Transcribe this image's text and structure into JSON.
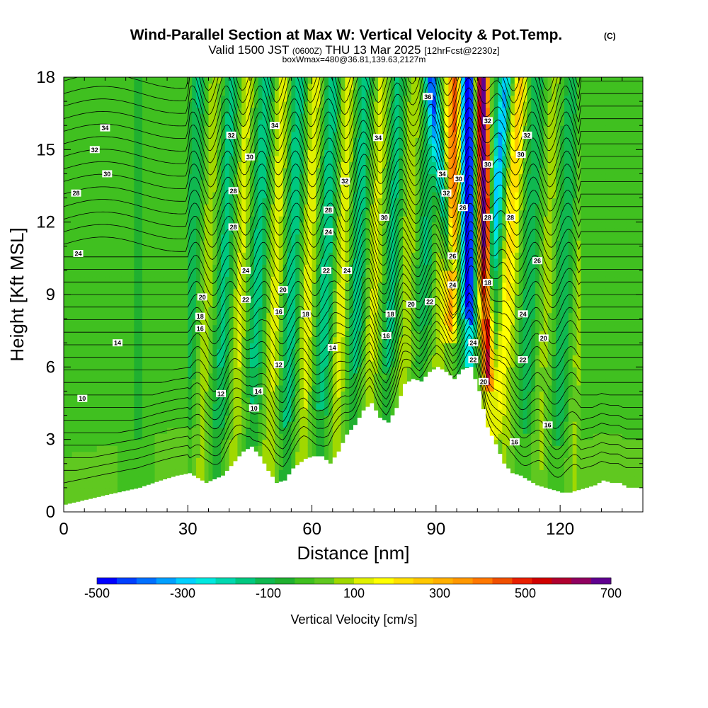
{
  "chart_data": {
    "type": "heatmap",
    "title": "Wind-Parallel Section at Max W: Vertical Velocity & Pot.Temp.",
    "title_mark": "(C)",
    "subtitle_pre": "Valid 1500 JST",
    "subtitle_utc": "(0600Z)",
    "subtitle_date": "THU 13 Mar 2025",
    "subtitle_fcst": "[12hrFcst@2230z]",
    "subtitle2": "boxWmax=480@36.81,139.63,2127m",
    "xlabel": "Distance [nm]",
    "ylabel": "Height [Kft MSL]",
    "xlim": [
      0,
      140
    ],
    "ylim": [
      0,
      18
    ],
    "x_ticks": [
      "0",
      "30",
      "60",
      "90",
      "120"
    ],
    "y_ticks": [
      "0",
      "3",
      "6",
      "9",
      "12",
      "15",
      "18"
    ],
    "x_tick_values": [
      0,
      30,
      60,
      90,
      120
    ],
    "y_tick_values": [
      0,
      3,
      6,
      9,
      12,
      15,
      18
    ],
    "colorbar": {
      "label": "Vertical Velocity [cm/s]",
      "range": [
        -500,
        700
      ],
      "step": 50,
      "tick_labels": [
        "-500",
        "-300",
        "-100",
        "100",
        "300",
        "500",
        "700"
      ],
      "tick_values": [
        -500,
        -300,
        -100,
        100,
        300,
        500,
        700
      ],
      "colors": [
        "#0000ff",
        "#0040ff",
        "#0070ff",
        "#00a0ff",
        "#00d0ff",
        "#00e8e0",
        "#00d8b0",
        "#00c880",
        "#10b850",
        "#20b030",
        "#40c020",
        "#60c820",
        "#a0d800",
        "#e0f000",
        "#ffff00",
        "#ffe000",
        "#ffc800",
        "#ffb000",
        "#ff9800",
        "#ff7800",
        "#f05000",
        "#e82000",
        "#d00000",
        "#b00030",
        "#900060",
        "#600090"
      ]
    },
    "terrain_profile": {
      "x": [
        0,
        10,
        18,
        23,
        27,
        30,
        34,
        38,
        40,
        43,
        45,
        47,
        49,
        51,
        53,
        55,
        58,
        60,
        62,
        64,
        66,
        68,
        70,
        72,
        74,
        76,
        78,
        80,
        82,
        84,
        86,
        88,
        90,
        92,
        94,
        96,
        98,
        100,
        102,
        104,
        106,
        108,
        110,
        112,
        114,
        116,
        118,
        120,
        122,
        124,
        126,
        128,
        130,
        132,
        134,
        136,
        140
      ],
      "height_kft": [
        0.3,
        0.7,
        1.0,
        1.3,
        1.5,
        1.6,
        1.2,
        1.5,
        1.9,
        2.5,
        2.7,
        2.3,
        1.7,
        1.2,
        1.3,
        1.8,
        2.2,
        2.3,
        2.3,
        2.0,
        2.5,
        3.2,
        3.6,
        4.2,
        4.5,
        3.9,
        3.7,
        4.3,
        5.3,
        5.5,
        5.4,
        5.8,
        6.0,
        5.8,
        5.5,
        5.9,
        6.0,
        5.0,
        3.5,
        2.8,
        2.0,
        1.6,
        1.5,
        1.3,
        1.1,
        1.0,
        0.9,
        0.8,
        0.8,
        0.9,
        1.0,
        1.1,
        1.3,
        1.2,
        1.2,
        1.0,
        1.0
      ]
    },
    "max_updraft": {
      "x_nm": 102,
      "value_cms": 700
    },
    "max_downdraft": {
      "x_nm": 98,
      "value_cms": -500
    },
    "theta_contour_labels": [
      {
        "text": "34",
        "x": 10,
        "y": 15.9
      },
      {
        "text": "32",
        "x": 7.5,
        "y": 15.0
      },
      {
        "text": "30",
        "x": 10.5,
        "y": 14.0
      },
      {
        "text": "28",
        "x": 3,
        "y": 13.2
      },
      {
        "text": "24",
        "x": 3.5,
        "y": 10.7
      },
      {
        "text": "20",
        "x": 33.5,
        "y": 8.9
      },
      {
        "text": "18",
        "x": 33,
        "y": 8.1
      },
      {
        "text": "16",
        "x": 33,
        "y": 7.6
      },
      {
        "text": "14",
        "x": 13,
        "y": 7.0
      },
      {
        "text": "10",
        "x": 4.5,
        "y": 4.7
      },
      {
        "text": "12",
        "x": 38,
        "y": 4.9
      },
      {
        "text": "32",
        "x": 40.5,
        "y": 15.6
      },
      {
        "text": "30",
        "x": 45,
        "y": 14.7
      },
      {
        "text": "28",
        "x": 41,
        "y": 13.3
      },
      {
        "text": "28",
        "x": 41,
        "y": 11.8
      },
      {
        "text": "24",
        "x": 44,
        "y": 10.0
      },
      {
        "text": "22",
        "x": 44,
        "y": 8.8
      },
      {
        "text": "34",
        "x": 51,
        "y": 16.0
      },
      {
        "text": "20",
        "x": 53,
        "y": 9.2
      },
      {
        "text": "16",
        "x": 52,
        "y": 8.3
      },
      {
        "text": "12",
        "x": 52,
        "y": 6.1
      },
      {
        "text": "14",
        "x": 47,
        "y": 5.0
      },
      {
        "text": "10",
        "x": 46,
        "y": 4.3
      },
      {
        "text": "18",
        "x": 58.5,
        "y": 8.2
      },
      {
        "text": "28",
        "x": 64,
        "y": 12.5
      },
      {
        "text": "24",
        "x": 64,
        "y": 11.6
      },
      {
        "text": "22",
        "x": 63.5,
        "y": 10.0
      },
      {
        "text": "24",
        "x": 68.5,
        "y": 10.0
      },
      {
        "text": "14",
        "x": 65,
        "y": 6.8
      },
      {
        "text": "32",
        "x": 68,
        "y": 13.7
      },
      {
        "text": "34",
        "x": 76,
        "y": 15.5
      },
      {
        "text": "30",
        "x": 77.5,
        "y": 12.2
      },
      {
        "text": "18",
        "x": 79,
        "y": 8.2
      },
      {
        "text": "16",
        "x": 78,
        "y": 7.3
      },
      {
        "text": "20",
        "x": 84,
        "y": 8.6
      },
      {
        "text": "22",
        "x": 88.5,
        "y": 8.7
      },
      {
        "text": "36",
        "x": 88,
        "y": 17.2
      },
      {
        "text": "34",
        "x": 91.5,
        "y": 14.0
      },
      {
        "text": "32",
        "x": 92.5,
        "y": 13.2
      },
      {
        "text": "30",
        "x": 95.5,
        "y": 13.8
      },
      {
        "text": "26",
        "x": 96.5,
        "y": 12.6
      },
      {
        "text": "26",
        "x": 94,
        "y": 10.6
      },
      {
        "text": "24",
        "x": 94,
        "y": 9.4
      },
      {
        "text": "24",
        "x": 99,
        "y": 7.0
      },
      {
        "text": "22",
        "x": 99,
        "y": 6.3
      },
      {
        "text": "20",
        "x": 101.5,
        "y": 5.4
      },
      {
        "text": "32",
        "x": 102.5,
        "y": 16.2
      },
      {
        "text": "30",
        "x": 102.5,
        "y": 14.4
      },
      {
        "text": "28",
        "x": 102.5,
        "y": 12.2
      },
      {
        "text": "28",
        "x": 108,
        "y": 12.2
      },
      {
        "text": "32",
        "x": 112,
        "y": 15.6
      },
      {
        "text": "30",
        "x": 110.5,
        "y": 14.8
      },
      {
        "text": "26",
        "x": 114.5,
        "y": 10.4
      },
      {
        "text": "24",
        "x": 111,
        "y": 8.2
      },
      {
        "text": "22",
        "x": 111,
        "y": 6.3
      },
      {
        "text": "20",
        "x": 116,
        "y": 7.2
      },
      {
        "text": "18",
        "x": 102.5,
        "y": 9.5
      },
      {
        "text": "16",
        "x": 117,
        "y": 3.6
      },
      {
        "text": "16",
        "x": 109,
        "y": 2.9
      }
    ]
  }
}
